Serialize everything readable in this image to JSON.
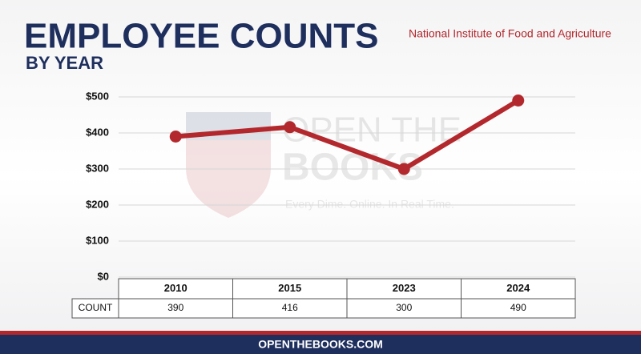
{
  "chart_data": {
    "type": "line",
    "title": "EMPLOYEE COUNTS",
    "subtitle": "BY YEAR",
    "source": "National Institute of Food and Agriculture",
    "categories": [
      "2010",
      "2015",
      "2023",
      "2024"
    ],
    "values": [
      390,
      416,
      300,
      490
    ],
    "row_label": "COUNT",
    "color": "#b3282d",
    "ylim": [
      0,
      500
    ],
    "yticks": [
      {
        "value": 0,
        "label": "$0"
      },
      {
        "value": 100,
        "label": "$100"
      },
      {
        "value": 200,
        "label": "$200"
      },
      {
        "value": 300,
        "label": "$300"
      },
      {
        "value": 400,
        "label": "$400"
      },
      {
        "value": 500,
        "label": "$500"
      }
    ],
    "grid": true
  },
  "watermark": {
    "line1": "OPEN THE",
    "line2": "BOOKS",
    "tagline": "Every Dime. Online. In Real Time."
  },
  "footer": "OPENTHEBOOKS.COM"
}
